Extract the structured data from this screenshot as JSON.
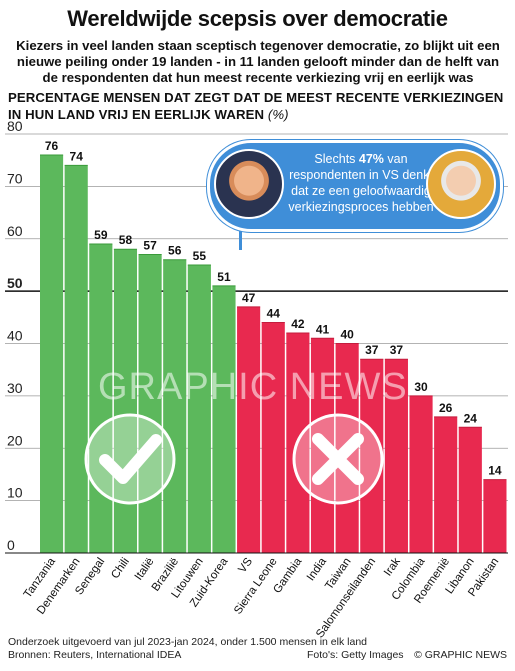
{
  "header": {
    "title": "Wereldwijde scepsis over democratie",
    "subtitle": "Kiezers in veel landen staan sceptisch tegenover democratie, zo blijkt uit een nieuwe peiling onder 19 landen - in 11 landen gelooft minder dan de helft van de respondenten dat hun meest recente verkiezing vrij en eerlijk was"
  },
  "chart_data": {
    "type": "bar",
    "ylabel": "PERCENTAGE MENSEN DAT ZEGT DAT DE MEEST RECENTE VERKIEZINGEN IN HUN LAND VRIJ EN EERLIJK WAREN",
    "yunit": "(%)",
    "ylim": [
      0,
      80
    ],
    "yticks": [
      0,
      10,
      20,
      30,
      40,
      50,
      60,
      70,
      80
    ],
    "threshold": 50,
    "grid": true,
    "categories": [
      "Tanzania",
      "Denemarken",
      "Senegal",
      "Chili",
      "Italië",
      "Brazilië",
      "Litouwen",
      "Zuid-Korea",
      "VS",
      "Sierra Leone",
      "Gambia",
      "India",
      "Taiwan",
      "Salomonseilanden",
      "Irak",
      "Colombia",
      "Roemenië",
      "Libanon",
      "Pakistan"
    ],
    "values": [
      76,
      74,
      59,
      58,
      57,
      56,
      55,
      51,
      47,
      44,
      42,
      41,
      40,
      37,
      37,
      30,
      26,
      24,
      14
    ],
    "colors": {
      "above": "#5cb85c",
      "below": "#e8294f",
      "above_dark": "#3a9a3a",
      "below_dark": "#c41d3e",
      "callout": "#3f8ed8"
    },
    "icons": {
      "above": "checkmark-icon",
      "below": "cross-icon"
    }
  },
  "callout": {
    "text_before": "Slechts ",
    "highlight": "47%",
    "text_after": " van respondenten in VS denkt dat ze een geloofwaardig verkiezingsproces hebben",
    "left_photo": "trump-portrait-icon",
    "right_photo": "biden-portrait-icon"
  },
  "watermark": "GRAPHIC NEWS",
  "footer": {
    "note": "Onderzoek uitgevoerd van jul 2023-jan 2024, onder 1.500 mensen in elk land",
    "sources": "Bronnen: Reuters, International IDEA",
    "photo": "Foto's: Getty Images",
    "brand": "© GRAPHIC NEWS"
  }
}
